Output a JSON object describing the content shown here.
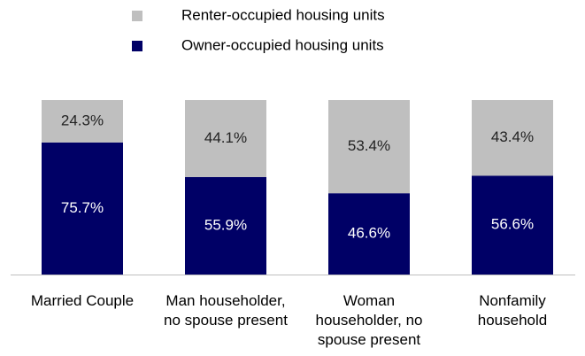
{
  "chart_data": {
    "type": "stacked-bar-100",
    "categories": [
      "Married Couple",
      "Man householder, no spouse present",
      "Woman householder, no spouse present",
      "Nonfamily household"
    ],
    "series": [
      {
        "name": "Renter-occupied housing units",
        "color": "#bfbfbf",
        "label_color": "#222222",
        "values": [
          24.3,
          44.1,
          53.4,
          43.4
        ],
        "value_labels": [
          "24.3%",
          "44.1%",
          "53.4%",
          "43.4%"
        ]
      },
      {
        "name": "Owner-occupied housing units",
        "color": "#000066",
        "label_color": "#ffffff",
        "values": [
          75.7,
          55.9,
          46.6,
          56.6
        ],
        "value_labels": [
          "75.7%",
          "55.9%",
          "46.6%",
          "56.6%"
        ]
      }
    ],
    "ylim": [
      0,
      100
    ]
  }
}
